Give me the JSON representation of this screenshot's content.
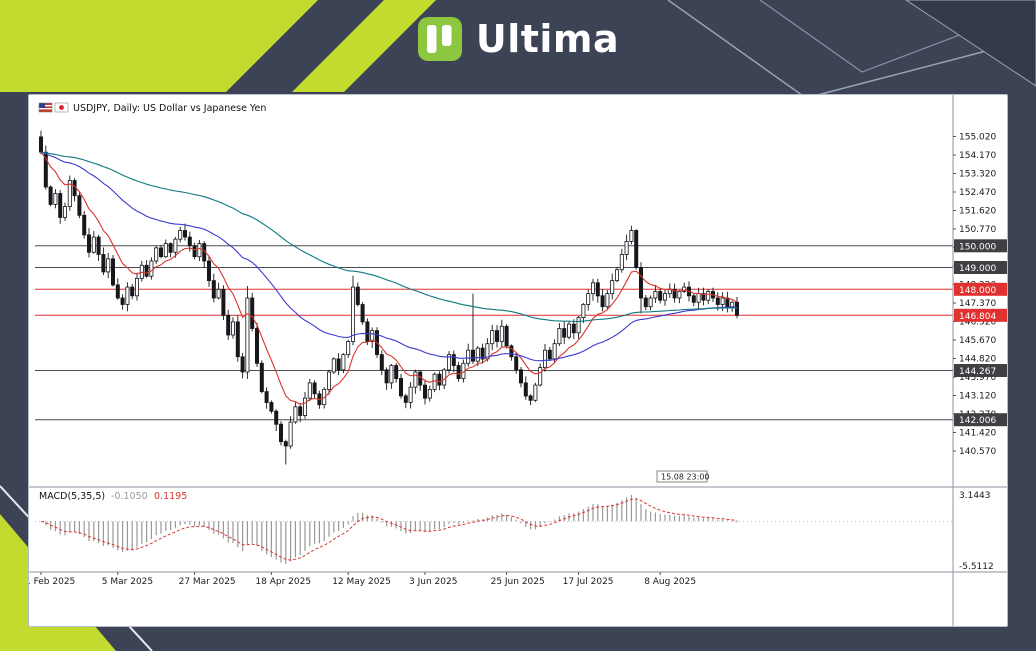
{
  "header": {
    "brand": "Ultima"
  },
  "chart": {
    "symbol_title": "USDJPY, Daily:",
    "description": "US Dollar vs Japanese Yen",
    "time_marker": "15.08 23:00",
    "macd_label": "MACD(5,35,5)",
    "macd_main_value": "-0.1050",
    "macd_signal_value": "0.1195",
    "macd_scale_max": "3.1443",
    "macd_scale_min": "-5.5112",
    "current_price": "146.804",
    "colors": {
      "bull": "#ffffff",
      "bear": "#17181c",
      "hist": "#9a9a9a",
      "signal": "#d9352c",
      "level": "#4a4d52",
      "level_red": "#e03131",
      "accent_green": "#c3db2f"
    }
  },
  "price_axis": {
    "ticks": [
      "155.020",
      "154.170",
      "153.320",
      "152.470",
      "151.620",
      "150.770",
      "149.920",
      "149.070",
      "148.220",
      "147.370",
      "146.520",
      "145.670",
      "144.820",
      "143.970",
      "143.120",
      "142.270",
      "141.420",
      "140.570"
    ]
  },
  "levels": [
    {
      "price": 150.0,
      "label": "150.000",
      "color": "dark"
    },
    {
      "price": 149.0,
      "label": "149.000",
      "color": "dark"
    },
    {
      "price": 148.0,
      "label": "148.000",
      "color": "red"
    },
    {
      "price": 146.804,
      "label": "146.804",
      "color": "red"
    },
    {
      "price": 144.267,
      "label": "144.267",
      "color": "dark"
    },
    {
      "price": 142.006,
      "label": "142.006",
      "color": "dark"
    }
  ],
  "time_axis": {
    "labels": [
      {
        "i": 0,
        "t": "1 Feb 2025"
      },
      {
        "i": 16,
        "t": "5 Mar 2025"
      },
      {
        "i": 32,
        "t": "27 Mar 2025"
      },
      {
        "i": 48,
        "t": "18 Apr 2025"
      },
      {
        "i": 64,
        "t": "12 May 2025"
      },
      {
        "i": 80,
        "t": "3 Jun 2025"
      },
      {
        "i": 97,
        "t": "25 Jun 2025"
      },
      {
        "i": 112,
        "t": "17 Jul 2025"
      },
      {
        "i": 129,
        "t": "8 Aug 2025"
      }
    ]
  },
  "chart_data": {
    "type": "candlestick",
    "symbol": "USDJPY",
    "timeframe": "Daily",
    "title": "USDJPY, Daily: US Dollar vs Japanese Yen",
    "first_open": 155.0,
    "closes": [
      154.3,
      152.7,
      151.9,
      152.4,
      151.3,
      151.8,
      153.0,
      152.3,
      151.4,
      150.5,
      149.7,
      150.4,
      149.6,
      148.8,
      149.4,
      148.2,
      147.6,
      147.3,
      148.1,
      147.7,
      148.5,
      149.1,
      148.6,
      149.3,
      149.9,
      149.5,
      150.1,
      149.7,
      150.3,
      150.7,
      150.4,
      150.0,
      149.5,
      150.1,
      149.3,
      148.4,
      147.6,
      148.0,
      146.8,
      145.9,
      146.5,
      144.9,
      144.2,
      147.6,
      146.2,
      144.6,
      143.3,
      142.8,
      142.4,
      141.8,
      141.0,
      140.8,
      141.9,
      142.6,
      142.2,
      143.0,
      143.7,
      143.2,
      142.7,
      143.4,
      144.2,
      144.8,
      144.3,
      145.0,
      145.6,
      148.1,
      147.3,
      146.5,
      145.6,
      146.1,
      145.0,
      144.3,
      143.7,
      144.5,
      143.9,
      143.1,
      142.8,
      143.5,
      144.2,
      143.6,
      143.0,
      143.4,
      144.1,
      143.6,
      144.3,
      145.0,
      144.5,
      143.9,
      144.6,
      145.2,
      144.7,
      145.3,
      144.8,
      145.5,
      146.1,
      145.6,
      146.3,
      145.4,
      144.9,
      144.3,
      143.7,
      143.1,
      142.9,
      143.6,
      144.4,
      145.2,
      144.8,
      145.5,
      146.2,
      145.8,
      146.4,
      146.0,
      146.7,
      147.3,
      147.8,
      148.3,
      147.7,
      147.2,
      147.8,
      148.4,
      148.9,
      149.6,
      150.2,
      150.7,
      149.0,
      147.6,
      147.2,
      147.6,
      147.9,
      147.5,
      147.8,
      148.0,
      147.6,
      147.9,
      148.1,
      147.7,
      147.4,
      147.8,
      147.5,
      147.9,
      147.6,
      147.3,
      147.6,
      147.2,
      147.4,
      146.804
    ],
    "wick_overrides": {
      "0": {
        "h": 155.28
      },
      "43": {
        "h": 148.15
      },
      "51": {
        "l": 139.95
      },
      "65": {
        "h": 148.62
      },
      "90": {
        "h": 147.8
      },
      "102": {
        "l": 142.68
      },
      "123": {
        "h": 150.92
      },
      "125": {
        "l": 146.9
      }
    },
    "moving_averages": [
      {
        "name": "ma-fast",
        "period": 10,
        "color": "#d9352c"
      },
      {
        "name": "ma-mid",
        "period": 45,
        "color": "#3b3bd0"
      },
      {
        "name": "ma-slow",
        "period": 110,
        "color": "#0e7a80"
      }
    ],
    "indicator": {
      "name": "MACD",
      "fast": 5,
      "slow": 35,
      "signal": 5,
      "main_value": -0.105,
      "signal_value": 0.1195,
      "scale_max": 3.1443,
      "scale_min": -5.5112
    },
    "price_axis_anchor": 155.02,
    "price_axis_step": 0.85,
    "ylim": [
      139.6,
      156.2
    ],
    "legend_position": "none",
    "grid": false
  }
}
